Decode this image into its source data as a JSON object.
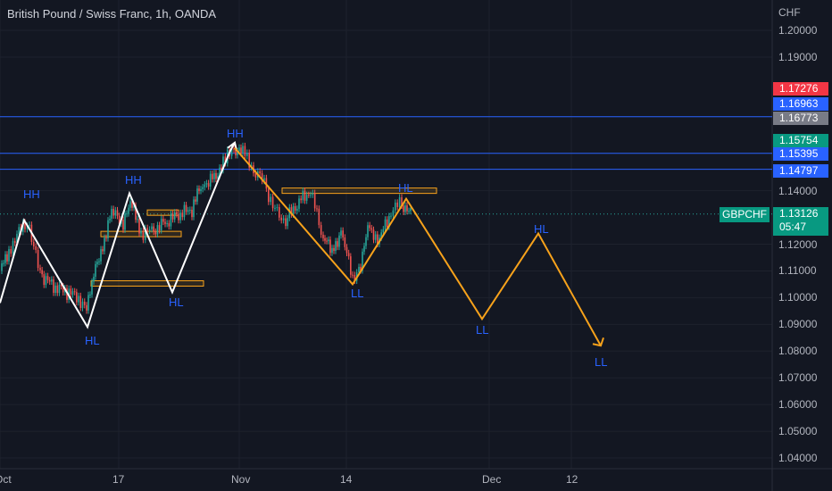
{
  "header": {
    "title": "British Pound / Swiss Franc, 1h, OANDA"
  },
  "currency_label": "CHF",
  "symbol_tag": "GBPCHF",
  "current": {
    "price": "1.13126",
    "countdown": "05:47"
  },
  "colors": {
    "background": "#131722",
    "up": "#26a69a",
    "down": "#ef5350",
    "white_path": "#ffffff",
    "projection": "#f7a21b",
    "hline": "#2962ff",
    "label": "#2962ff"
  },
  "price_boxes": [
    {
      "label": "1.17276",
      "value": 1.17276,
      "color": "#f23645"
    },
    {
      "label": "1.16963",
      "value": 1.16963,
      "color": "#2962ff"
    },
    {
      "label": "1.16773",
      "value": 1.16773,
      "color": "#787b86"
    },
    {
      "label": "1.15754",
      "value": 1.15754,
      "color": "#089981"
    },
    {
      "label": "1.15395",
      "value": 1.15395,
      "color": "#2962ff"
    },
    {
      "label": "1.14797",
      "value": 1.14797,
      "color": "#2962ff"
    }
  ],
  "chart_data": {
    "type": "line",
    "title": "British Pound / Swiss Franc, 1h, OANDA",
    "y_ticks": [
      "1.20000",
      "1.19000",
      "1.14000",
      "1.12000",
      "1.11000",
      "1.10000",
      "1.09000",
      "1.08000",
      "1.07000",
      "1.06000",
      "1.05000",
      "1.04000"
    ],
    "x_ticks": [
      "Oct",
      "17",
      "Nov",
      "14",
      "Dec",
      "12"
    ],
    "horizontal_lines": [
      1.1677,
      1.154,
      1.148
    ],
    "series": [
      {
        "values": [
          [
            0,
            1.11
          ],
          [
            10,
            1.118
          ],
          [
            28,
            1.128
          ],
          [
            33,
            1.125
          ],
          [
            45,
            1.109
          ],
          [
            60,
            1.104
          ],
          [
            75,
            1.102
          ],
          [
            88,
            1.1
          ],
          [
            97,
            1.095
          ],
          [
            105,
            1.108
          ],
          [
            115,
            1.12
          ],
          [
            125,
            1.132
          ],
          [
            138,
            1.128
          ],
          [
            148,
            1.136
          ],
          [
            158,
            1.124
          ],
          [
            170,
            1.125
          ],
          [
            185,
            1.128
          ],
          [
            200,
            1.131
          ],
          [
            215,
            1.133
          ],
          [
            225,
            1.142
          ],
          [
            240,
            1.145
          ],
          [
            250,
            1.15
          ],
          [
            262,
            1.156
          ],
          [
            272,
            1.154
          ],
          [
            284,
            1.148
          ],
          [
            296,
            1.143
          ],
          [
            308,
            1.132
          ],
          [
            320,
            1.129
          ],
          [
            335,
            1.136
          ],
          [
            348,
            1.14
          ],
          [
            362,
            1.122
          ],
          [
            372,
            1.118
          ],
          [
            382,
            1.124
          ],
          [
            395,
            1.108
          ],
          [
            402,
            1.11
          ],
          [
            412,
            1.125
          ],
          [
            425,
            1.122
          ],
          [
            438,
            1.132
          ],
          [
            450,
            1.136
          ],
          [
            460,
            1.131
          ]
        ]
      }
    ],
    "white_path": [
      [
        0,
        1.098
      ],
      [
        27,
        1.129
      ],
      [
        98,
        1.089
      ],
      [
        145,
        1.139
      ],
      [
        193,
        1.102
      ],
      [
        258,
        1.155
      ],
      [
        263,
        1.158
      ]
    ],
    "projection_path": [
      [
        263,
        1.156
      ],
      [
        395,
        1.105
      ],
      [
        455,
        1.137
      ],
      [
        540,
        1.092
      ],
      [
        603,
        1.124
      ],
      [
        673,
        1.082
      ]
    ],
    "zones": [
      {
        "x1": 113,
        "x2": 203,
        "y": 1.1238
      },
      {
        "x1": 165,
        "x2": 200,
        "y": 1.1318
      },
      {
        "x1": 102,
        "x2": 228,
        "y": 1.1053
      },
      {
        "x1": 316,
        "x2": 489,
        "y": 1.14
      }
    ],
    "wave_labels": [
      {
        "text": "HH",
        "color": "#2962ff",
        "x": 26,
        "y": 1.1385
      },
      {
        "text": "HL",
        "color": "#2962ff",
        "x": 95,
        "y": 1.0837
      },
      {
        "text": "HH",
        "color": "#2962ff",
        "x": 140,
        "y": 1.1438
      },
      {
        "text": "HL",
        "color": "#2962ff",
        "x": 189,
        "y": 1.0981
      },
      {
        "text": "HH",
        "color": "#2962ff",
        "x": 254,
        "y": 1.1614
      },
      {
        "text": "LL",
        "color": "#2962ff",
        "x": 393,
        "y": 1.1014
      },
      {
        "text": "HL",
        "color": "#2962ff",
        "x": 446,
        "y": 1.1408
      },
      {
        "text": "LL",
        "color": "#2962ff",
        "x": 533,
        "y": 1.0877
      },
      {
        "text": "HL",
        "color": "#2962ff",
        "x": 598,
        "y": 1.1255
      },
      {
        "text": "LL",
        "color": "#2962ff",
        "x": 666,
        "y": 1.0756
      }
    ]
  }
}
